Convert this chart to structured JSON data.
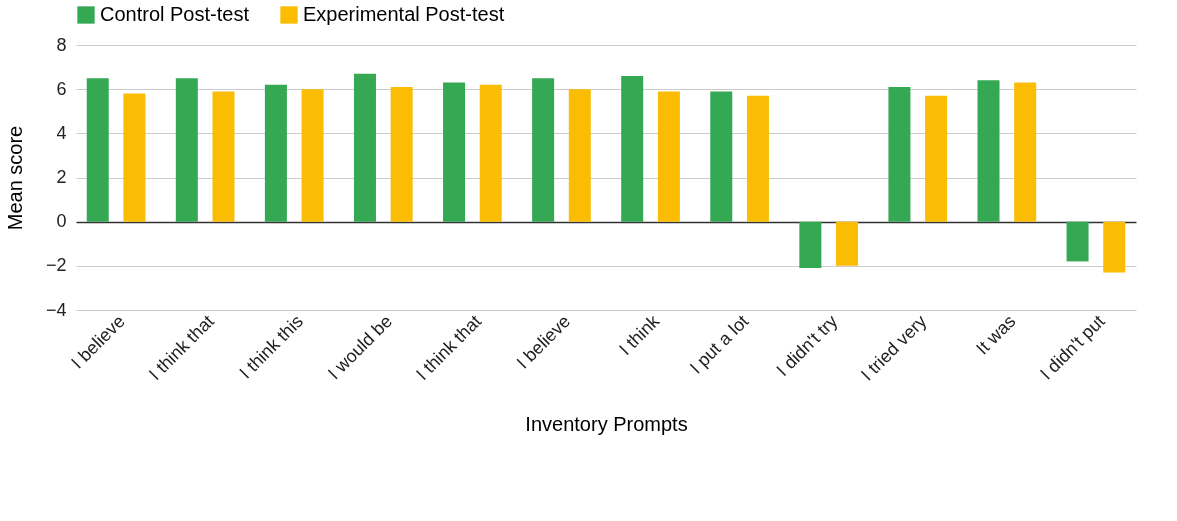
{
  "chart_data": {
    "type": "bar",
    "xlabel": "Inventory Prompts",
    "ylabel": "Mean score",
    "categories": [
      "I believe",
      "I think that",
      "I think this",
      "I would be",
      "I think that",
      "I believe",
      "I think",
      "I put a lot",
      "I didn't try",
      "I tried very",
      "It was",
      "I didn't put"
    ],
    "series": [
      {
        "name": "Control Post-test",
        "color": "#34a853",
        "values": [
          6.5,
          6.5,
          6.2,
          6.7,
          6.3,
          6.5,
          6.6,
          5.9,
          -2.1,
          6.1,
          6.4,
          -1.8
        ]
      },
      {
        "name": "Experimental Post-test",
        "color": "#fbbc04",
        "values": [
          5.8,
          5.9,
          6.0,
          6.1,
          6.2,
          6.0,
          5.9,
          5.7,
          -2.0,
          5.7,
          6.3,
          -2.3
        ]
      }
    ],
    "ylim": [
      -4,
      8
    ],
    "yticks": [
      -4,
      -2,
      0,
      2,
      4,
      6,
      8
    ],
    "grid": "y",
    "legend": "top"
  }
}
